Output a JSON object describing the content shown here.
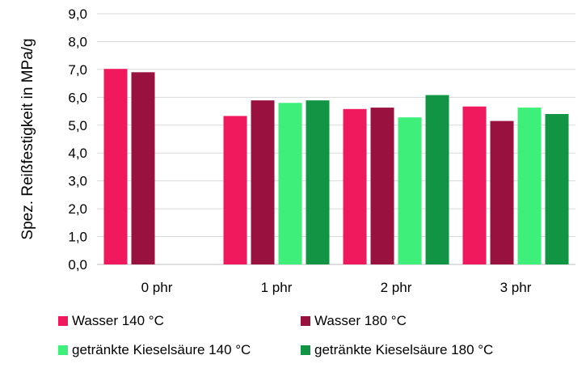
{
  "chart_data": {
    "type": "bar",
    "title": "",
    "xlabel": "",
    "ylabel": "Spez. Reißfestigkeit in MPa/g",
    "ylim": [
      0,
      9
    ],
    "y_ticks": [
      "0,0",
      "1,0",
      "2,0",
      "3,0",
      "4,0",
      "5,0",
      "6,0",
      "7,0",
      "8,0",
      "9,0"
    ],
    "grid": true,
    "legend_position": "bottom",
    "categories": [
      "0 phr",
      "1 phr",
      "2 phr",
      "3 phr"
    ],
    "series": [
      {
        "name": "Wasser 140 °C",
        "color": "#f0195e",
        "values": [
          7.02,
          5.33,
          5.58,
          5.67
        ]
      },
      {
        "name": "Wasser 180 °C",
        "color": "#98113f",
        "values": [
          6.9,
          5.89,
          5.63,
          5.15
        ]
      },
      {
        "name": "getränkte Kieselsäure 140 °C",
        "color": "#3ef07a",
        "values": [
          null,
          5.8,
          5.28,
          5.63
        ]
      },
      {
        "name": "getränkte Kieselsäure 180 °C",
        "color": "#119444",
        "values": [
          null,
          5.89,
          6.08,
          5.4
        ]
      }
    ]
  }
}
